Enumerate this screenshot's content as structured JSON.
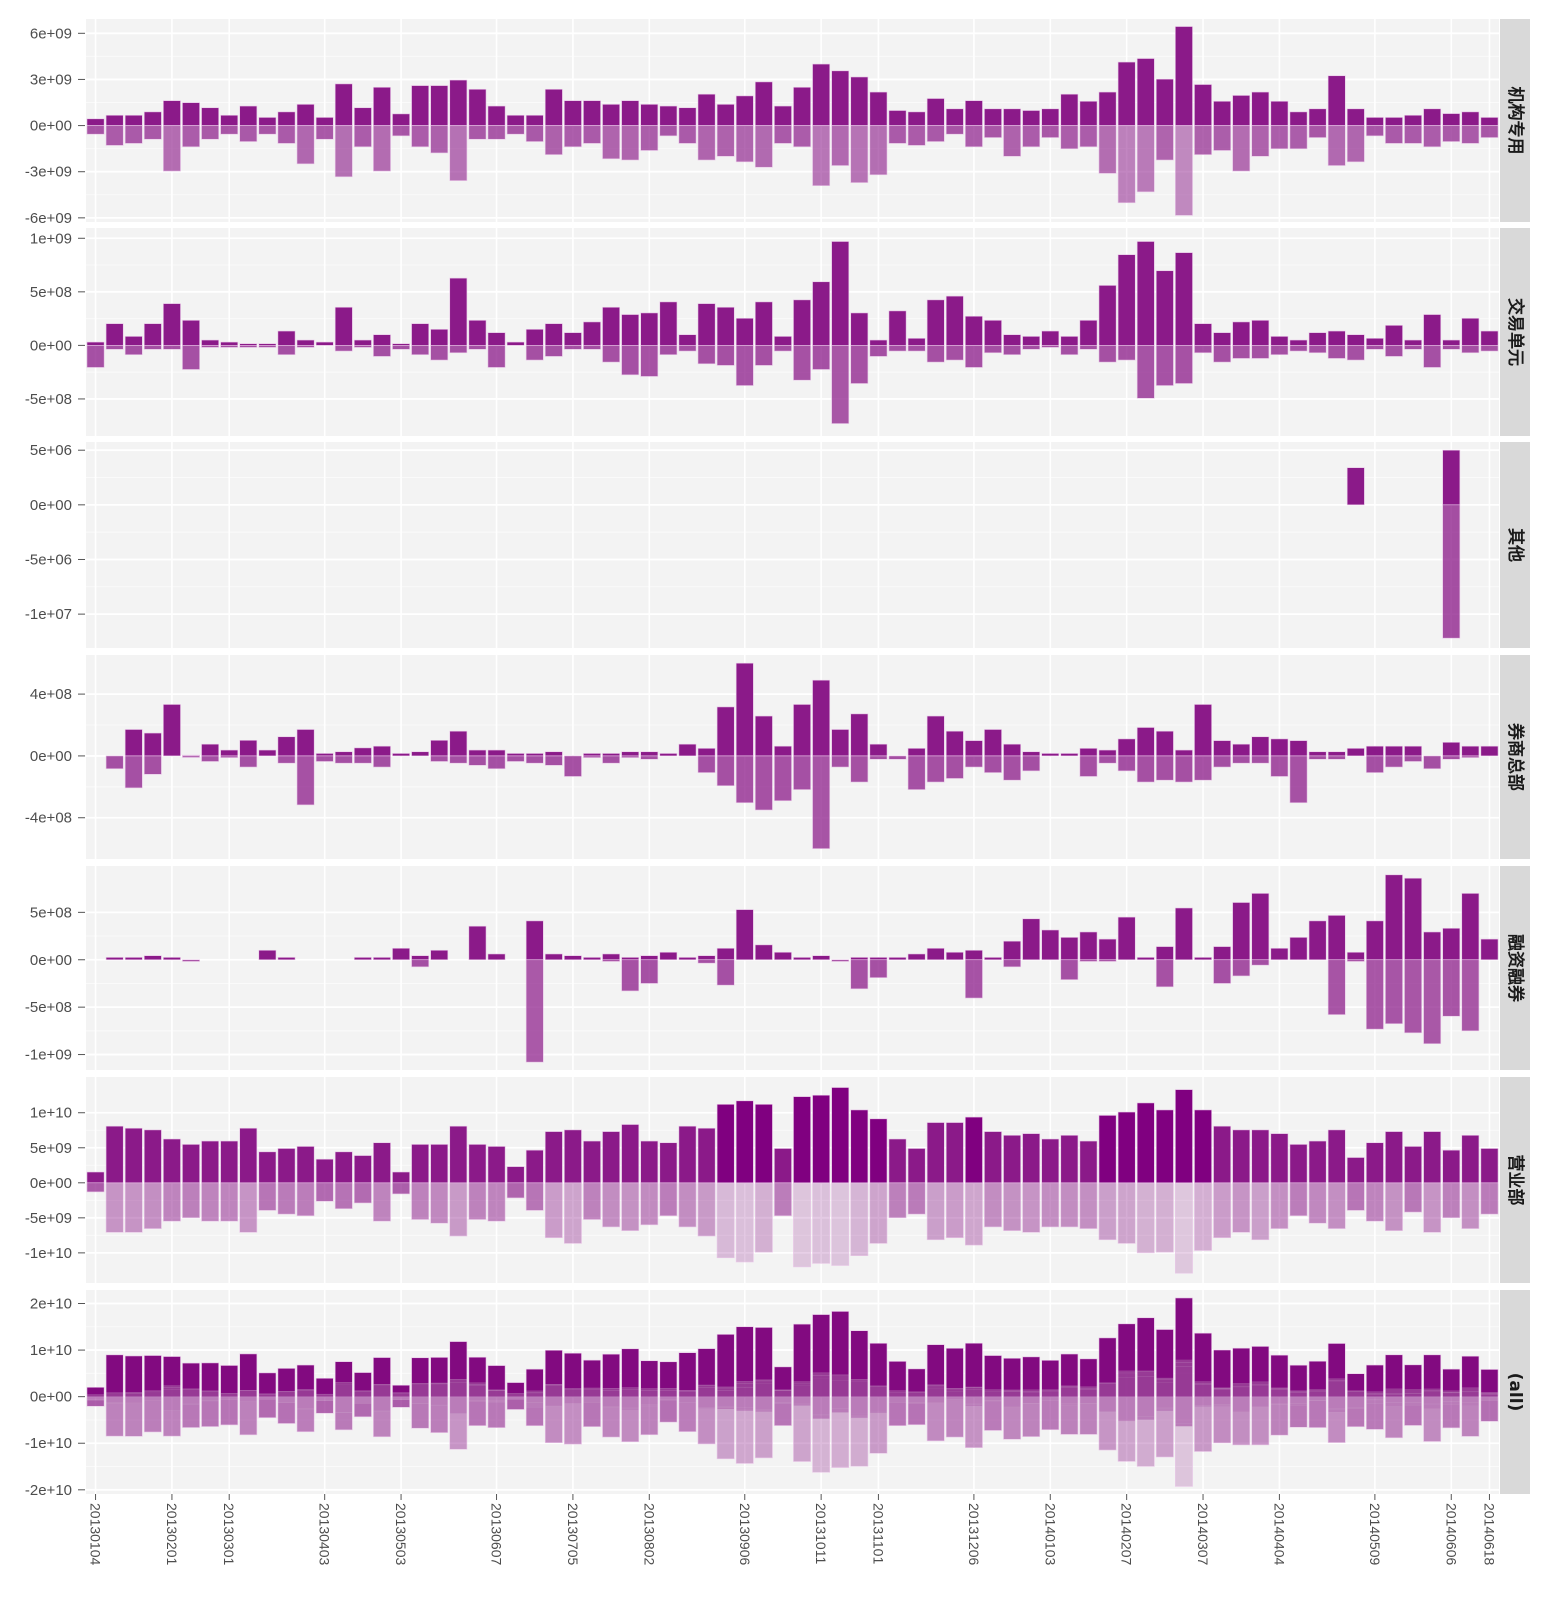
{
  "chart_data": {
    "type": "bar",
    "layout": "faceted, panels stacked vertically, free y scales",
    "x_ticks": [
      {
        "index": 0,
        "label": "20130104"
      },
      {
        "index": 4,
        "label": "20130201"
      },
      {
        "index": 7,
        "label": "20130301"
      },
      {
        "index": 12,
        "label": "20130403"
      },
      {
        "index": 16,
        "label": "20130503"
      },
      {
        "index": 21,
        "label": "20130607"
      },
      {
        "index": 25,
        "label": "20130705"
      },
      {
        "index": 29,
        "label": "20130802"
      },
      {
        "index": 34,
        "label": "20130906"
      },
      {
        "index": 38,
        "label": "20131011"
      },
      {
        "index": 41,
        "label": "20131101"
      },
      {
        "index": 46,
        "label": "20131206"
      },
      {
        "index": 50,
        "label": "20140103"
      },
      {
        "index": 54,
        "label": "20140207"
      },
      {
        "index": 58,
        "label": "20140307"
      },
      {
        "index": 62,
        "label": "20140404"
      },
      {
        "index": 67,
        "label": "20140509"
      },
      {
        "index": 71,
        "label": "20140606"
      },
      {
        "index": 73,
        "label": "20140618"
      }
    ],
    "bar_count": 74,
    "colors": {
      "positive": "#8b1a89",
      "positive_strong": "#800080",
      "negative_base": "#8b1a89",
      "panel_bg": "#f3f3f3",
      "strip_bg": "#d9d9d9"
    },
    "panels": [
      {
        "label": "机构专用",
        "unit": 1000000000.0,
        "ylim": [
          -6.27,
          6.93
        ],
        "ticks": [
          {
            "v": 6,
            "label": "6e+09"
          },
          {
            "v": 3,
            "label": "3e+09"
          },
          {
            "v": 0,
            "label": "0e+00"
          },
          {
            "v": -3,
            "label": "-3e+09"
          },
          {
            "v": -6,
            "label": "-6e+09"
          }
        ],
        "pos": [
          0.44,
          0.67,
          0.67,
          0.89,
          1.62,
          1.49,
          1.16,
          0.67,
          1.27,
          0.53,
          0.89,
          1.38,
          0.53,
          2.71,
          1.16,
          2.49,
          0.76,
          2.6,
          2.6,
          2.96,
          2.36,
          1.27,
          0.67,
          0.67,
          2.36,
          1.62,
          1.62,
          1.38,
          1.62,
          1.38,
          1.27,
          1.16,
          2.04,
          1.38,
          1.93,
          2.84,
          1.27,
          2.49,
          4.0,
          3.56,
          3.16,
          2.18,
          0.98,
          0.89,
          1.76,
          1.09,
          1.62,
          1.09,
          1.09,
          0.98,
          1.09,
          2.04,
          1.58,
          2.18,
          4.13,
          4.36,
          3.02,
          6.44,
          2.67,
          1.58,
          1.96,
          2.18,
          1.58,
          0.89,
          1.09,
          3.24,
          1.09,
          0.53,
          0.53,
          0.67,
          1.09,
          0.78,
          0.89,
          0.53
        ],
        "neg": [
          -0.56,
          -1.29,
          -1.16,
          -0.89,
          -2.96,
          -1.38,
          -0.89,
          -0.56,
          -1.04,
          -0.56,
          -1.16,
          -2.49,
          -0.89,
          -3.33,
          -1.38,
          -2.96,
          -0.67,
          -1.38,
          -1.78,
          -3.58,
          -0.89,
          -0.89,
          -0.56,
          -1.04,
          -1.89,
          -1.38,
          -1.16,
          -2.16,
          -2.24,
          -1.62,
          -0.67,
          -1.16,
          -2.24,
          -2.0,
          -2.36,
          -2.71,
          -1.16,
          -1.38,
          -3.91,
          -2.6,
          -3.71,
          -3.2,
          -1.16,
          -1.29,
          -1.04,
          -0.56,
          -1.38,
          -0.78,
          -2.0,
          -1.38,
          -0.78,
          -1.51,
          -1.38,
          -3.11,
          -5.02,
          -4.31,
          -2.24,
          -5.84,
          -1.89,
          -1.62,
          -2.96,
          -2.0,
          -1.51,
          -1.51,
          -0.78,
          -2.6,
          -2.36,
          -0.67,
          -1.16,
          -1.16,
          -1.38,
          -1.04,
          -1.16,
          -0.78
        ]
      },
      {
        "label": "交易单元",
        "unit": 100000000.0,
        "ylim": [
          -8.46,
          10.96
        ],
        "ticks": [
          {
            "v": 10,
            "label": "1e+09"
          },
          {
            "v": 5,
            "label": "5e+08"
          },
          {
            "v": 0,
            "label": "0e+00"
          },
          {
            "v": -5,
            "label": "-5e+08"
          }
        ],
        "pos": [
          0.31,
          2.03,
          0.84,
          2.03,
          3.9,
          2.34,
          0.5,
          0.31,
          0.16,
          0.16,
          1.34,
          0.5,
          0.31,
          3.56,
          0.5,
          1.0,
          0.16,
          2.03,
          1.5,
          6.28,
          2.34,
          1.19,
          0.31,
          1.5,
          2.03,
          1.19,
          2.19,
          3.56,
          2.88,
          3.03,
          4.06,
          1.0,
          3.9,
          3.56,
          2.53,
          4.06,
          0.84,
          4.25,
          5.94,
          9.7,
          3.03,
          0.5,
          3.22,
          0.66,
          4.25,
          4.6,
          2.72,
          2.34,
          1.0,
          0.84,
          1.34,
          0.84,
          2.34,
          5.6,
          8.47,
          9.7,
          6.97,
          8.66,
          2.03,
          1.19,
          2.19,
          2.34,
          0.84,
          0.5,
          1.19,
          1.34,
          1.0,
          0.66,
          1.87,
          0.5,
          2.88,
          0.5,
          2.53,
          1.34
        ],
        "neg": [
          -2.06,
          -0.37,
          -0.87,
          -0.37,
          -0.37,
          -2.25,
          -0.19,
          -0.19,
          -0.19,
          -0.19,
          -0.87,
          -0.19,
          0,
          -0.53,
          -0.19,
          -1.03,
          -0.37,
          -0.87,
          -1.37,
          -0.69,
          -0.37,
          -2.06,
          0,
          -1.37,
          -1.03,
          -0.37,
          -0.37,
          -1.56,
          -2.75,
          -2.9,
          -0.87,
          -0.53,
          -1.72,
          -1.87,
          -3.75,
          -1.87,
          -0.53,
          -3.25,
          -2.25,
          -7.3,
          -3.56,
          -1.03,
          -0.53,
          -0.53,
          -1.56,
          -1.37,
          -2.06,
          -0.69,
          -0.87,
          -0.37,
          -0.19,
          -0.87,
          -0.37,
          -1.56,
          -1.37,
          -4.94,
          -3.75,
          -3.56,
          -0.69,
          -1.56,
          -1.22,
          -1.22,
          -0.87,
          -0.53,
          -0.69,
          -1.22,
          -1.37,
          -0.37,
          -1.03,
          -0.37,
          -2.06,
          -0.37,
          -0.69,
          -0.53
        ]
      },
      {
        "label": "其他",
        "unit": 1000000.0,
        "ylim": [
          -13.1,
          5.75
        ],
        "ticks": [
          {
            "v": 5,
            "label": "5e+06"
          },
          {
            "v": 0,
            "label": "0e+00"
          },
          {
            "v": -5,
            "label": "-5e+06"
          },
          {
            "v": -10,
            "label": "-1e+07"
          }
        ],
        "pos": [
          0,
          0,
          0,
          0,
          0,
          0,
          0,
          0,
          0,
          0,
          0,
          0,
          0,
          0,
          0,
          0,
          0,
          0,
          0,
          0,
          0,
          0,
          0,
          0,
          0,
          0,
          0,
          0,
          0,
          0,
          0,
          0,
          0,
          0,
          0,
          0,
          0,
          0,
          0,
          0,
          0,
          0,
          0,
          0,
          0,
          0,
          0,
          0,
          0,
          0,
          0,
          0,
          0,
          0,
          0,
          0,
          0,
          0,
          0,
          0,
          0,
          0,
          0,
          0,
          0,
          0,
          3.4,
          0,
          0,
          0,
          0,
          5.0,
          0,
          0
        ],
        "neg": [
          0,
          0,
          0,
          0,
          0,
          0,
          0,
          0,
          0,
          0,
          0,
          0,
          0,
          0,
          0,
          0,
          0,
          0,
          0,
          0,
          0,
          0,
          0,
          0,
          0,
          0,
          0,
          0,
          0,
          0,
          0,
          0,
          0,
          0,
          0,
          0,
          0,
          0,
          0,
          0,
          0,
          0,
          0,
          0,
          0,
          0,
          0,
          0,
          0,
          0,
          0,
          0,
          0,
          0,
          0,
          0,
          0,
          0,
          0,
          0,
          0,
          0,
          0,
          0,
          0,
          0,
          0,
          0,
          0,
          0,
          0,
          -12.2,
          0,
          0
        ]
      },
      {
        "label": "券商总部",
        "unit": 100000000.0,
        "ylim": [
          -6.67,
          6.53
        ],
        "ticks": [
          {
            "v": 4,
            "label": "4e+08"
          },
          {
            "v": 0,
            "label": "0e+00"
          },
          {
            "v": -4,
            "label": "-4e+08"
          }
        ],
        "pos": [
          0,
          0,
          1.71,
          1.48,
          3.33,
          0.05,
          0.76,
          0.38,
          1.01,
          0.38,
          1.24,
          1.71,
          0.16,
          0.27,
          0.52,
          0.63,
          0.16,
          0.27,
          1.01,
          1.6,
          0.38,
          0.38,
          0.16,
          0.16,
          0.27,
          0,
          0.16,
          0.16,
          0.27,
          0.27,
          0.16,
          0.76,
          0.49,
          3.17,
          6.0,
          2.58,
          0.63,
          3.33,
          4.9,
          1.71,
          2.72,
          0.76,
          0,
          0.49,
          2.58,
          1.6,
          0.99,
          1.71,
          0.76,
          0.27,
          0.16,
          0.16,
          0.49,
          0.38,
          1.1,
          1.84,
          1.6,
          0.38,
          3.33,
          0.99,
          0.76,
          1.24,
          1.1,
          0.99,
          0.27,
          0.27,
          0.49,
          0.63,
          0.63,
          0.63,
          0,
          0.88,
          0.63,
          0.63
        ],
        "neg": [
          0,
          -0.83,
          -2.07,
          -1.19,
          0,
          -0.1,
          -0.36,
          -0.11,
          -0.72,
          0,
          -0.47,
          -3.17,
          -0.36,
          -0.47,
          -0.47,
          -0.72,
          0,
          0,
          -0.36,
          -0.47,
          -0.61,
          -0.83,
          -0.36,
          -0.47,
          -0.61,
          -1.33,
          -0.11,
          -0.47,
          -0.11,
          -0.22,
          0,
          0,
          -1.08,
          -1.93,
          -3.03,
          -3.5,
          -2.9,
          -2.18,
          -6.0,
          -0.72,
          -1.69,
          -0.22,
          -0.22,
          -2.18,
          -1.69,
          -1.46,
          -0.72,
          -1.08,
          -1.57,
          -0.97,
          0,
          0,
          -1.33,
          -0.47,
          -0.97,
          -1.69,
          -1.57,
          -1.69,
          -1.57,
          -0.72,
          -0.47,
          -0.47,
          -1.33,
          -3.03,
          -0.22,
          -0.22,
          0,
          -1.08,
          -0.72,
          -0.36,
          -0.83,
          -0.22,
          -0.11,
          0
        ]
      },
      {
        "label": "融资融券",
        "unit": 100000000.0,
        "ylim": [
          -11.63,
          9.89
        ],
        "ticks": [
          {
            "v": 5,
            "label": "5e+08"
          },
          {
            "v": 0,
            "label": "0e+00"
          },
          {
            "v": -5,
            "label": "-5e+08"
          },
          {
            "v": -10,
            "label": "-1e+09"
          }
        ],
        "pos": [
          0,
          0.25,
          0.25,
          0.43,
          0.25,
          0,
          0,
          0,
          0,
          1.0,
          0.25,
          0,
          0,
          0,
          0.25,
          0.25,
          1.21,
          0.43,
          1.0,
          0,
          3.54,
          0.61,
          0,
          4.1,
          0.61,
          0.43,
          0.25,
          0.61,
          0.25,
          0.43,
          0.79,
          0.25,
          0.43,
          1.21,
          5.29,
          1.57,
          0.79,
          0.25,
          0.43,
          0,
          0.25,
          0.25,
          0.25,
          0.61,
          1.21,
          0.79,
          1.0,
          0.25,
          1.96,
          4.32,
          3.14,
          2.36,
          2.93,
          2.18,
          4.5,
          0.25,
          1.39,
          5.46,
          0.25,
          1.39,
          6.04,
          7.0,
          1.21,
          2.36,
          4.1,
          4.68,
          0.79,
          4.1,
          8.96,
          8.6,
          2.93,
          3.32,
          7.0,
          2.18
        ],
        "neg": [
          0,
          0,
          0,
          0,
          0,
          -0.18,
          0,
          0,
          0,
          0,
          0,
          0,
          0,
          0,
          0,
          0,
          0,
          -0.75,
          0,
          0,
          0,
          0,
          0,
          -10.8,
          0,
          0,
          0,
          -0.18,
          -3.29,
          -2.5,
          0,
          0,
          -0.36,
          -2.68,
          0,
          0,
          0,
          0,
          0,
          -0.18,
          -3.07,
          -1.89,
          0,
          0,
          0,
          0,
          -4.04,
          0,
          -0.75,
          0,
          0,
          -2.1,
          -0.18,
          -0.18,
          0,
          0,
          -2.86,
          0,
          0,
          -2.5,
          -1.71,
          -0.57,
          0,
          0,
          0,
          -5.79,
          -0.18,
          -7.32,
          -6.75,
          -7.71,
          -8.86,
          -5.96,
          -7.5,
          0
        ]
      },
      {
        "label": "营业部",
        "unit": 1000000000.0,
        "ylim": [
          -14.3,
          15.1
        ],
        "ticks": [
          {
            "v": 10,
            "label": "1e+10"
          },
          {
            "v": 5,
            "label": "5e+09"
          },
          {
            "v": 0,
            "label": "0e+00"
          },
          {
            "v": -5,
            "label": "-5e+09"
          },
          {
            "v": -10,
            "label": "-1e+10"
          }
        ],
        "pos": [
          1.54,
          8.08,
          7.79,
          7.55,
          6.25,
          5.48,
          5.96,
          5.96,
          7.79,
          4.42,
          4.9,
          5.19,
          3.37,
          4.42,
          3.89,
          5.72,
          1.54,
          5.48,
          5.48,
          8.08,
          5.48,
          5.19,
          2.31,
          4.66,
          7.31,
          7.55,
          5.96,
          7.31,
          8.32,
          5.96,
          5.72,
          8.08,
          7.79,
          11.2,
          11.7,
          11.2,
          4.9,
          12.3,
          12.5,
          13.6,
          10.4,
          9.13,
          6.25,
          4.9,
          8.6,
          8.6,
          9.38,
          7.31,
          6.78,
          7.02,
          6.25,
          6.78,
          5.96,
          9.62,
          10.1,
          11.4,
          10.4,
          13.3,
          10.4,
          8.08,
          7.55,
          7.55,
          7.02,
          5.48,
          5.96,
          7.55,
          3.61,
          5.72,
          7.31,
          5.19,
          7.31,
          4.66,
          6.78,
          4.9
        ],
        "neg": [
          -1.3,
          -7.07,
          -7.07,
          -6.54,
          -5.48,
          -5.0,
          -5.48,
          -5.48,
          -7.07,
          -3.94,
          -4.47,
          -4.71,
          -2.64,
          -3.7,
          -2.88,
          -5.48,
          -1.59,
          -5.24,
          -5.77,
          -7.6,
          -5.24,
          -5.48,
          -2.16,
          -3.94,
          -7.84,
          -8.65,
          -5.24,
          -6.3,
          -6.83,
          -6.0,
          -4.71,
          -6.3,
          -7.6,
          -10.7,
          -11.3,
          -9.9,
          -4.71,
          -12.0,
          -11.5,
          -11.8,
          -10.4,
          -8.65,
          -5.0,
          -4.47,
          -8.13,
          -7.84,
          -8.89,
          -6.3,
          -6.83,
          -7.07,
          -6.3,
          -6.3,
          -6.54,
          -8.13,
          -8.65,
          -10.0,
          -9.9,
          -12.9,
          -9.66,
          -7.84,
          -7.07,
          -8.13,
          -6.54,
          -4.71,
          -5.77,
          -6.54,
          -3.94,
          -5.48,
          -6.83,
          -4.18,
          -7.07,
          -5.0,
          -6.54,
          -4.47
        ]
      },
      {
        "label": "(all)",
        "unit": 1000000000.0,
        "ylim": [
          -20.9,
          22.9
        ],
        "aggregate": "stacked sum of all categories",
        "ticks": [
          {
            "v": 20,
            "label": "2e+10"
          },
          {
            "v": 10,
            "label": "1e+10"
          },
          {
            "v": 0,
            "label": "0e+00"
          },
          {
            "v": -10,
            "label": "-1e+10"
          },
          {
            "v": -20,
            "label": "-2e+10"
          }
        ]
      }
    ]
  }
}
